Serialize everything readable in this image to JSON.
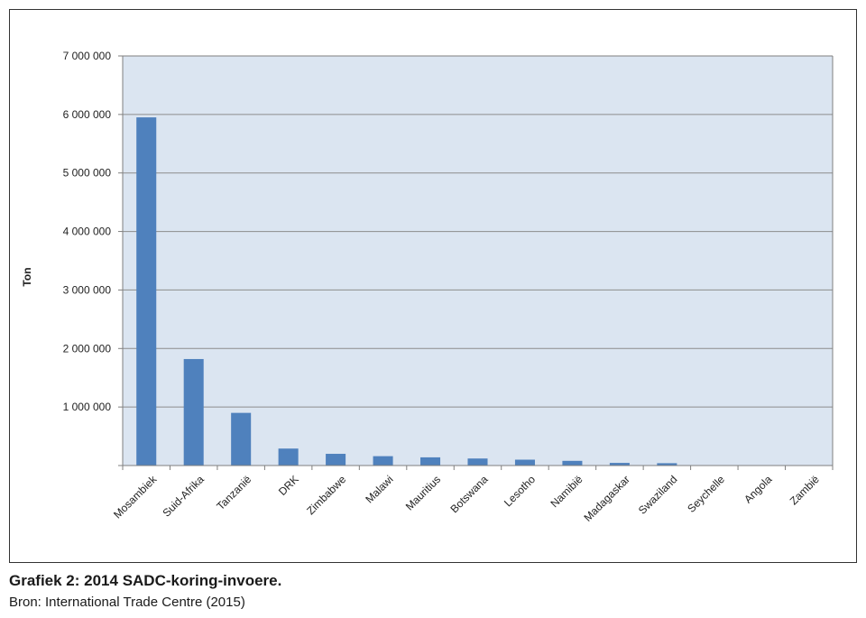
{
  "chart_data": {
    "type": "bar",
    "ylabel": "Ton",
    "xlabel": "",
    "ylim": [
      0,
      7000000
    ],
    "yticks": [
      0,
      1000000,
      2000000,
      3000000,
      4000000,
      5000000,
      6000000,
      7000000
    ],
    "ytick_labels": [
      "",
      "1 000 000",
      "2 000 000",
      "3 000 000",
      "4 000 000",
      "5 000 000",
      "6 000 000",
      "7 000 000"
    ],
    "categories": [
      "Mosambiek",
      "Suid-Afrika",
      "Tanzanië",
      "DRK",
      "Zimbabwe",
      "Malawi",
      "Mauritius",
      "Botswana",
      "Lesotho",
      "Namibië",
      "Madagaskar",
      "Swaziland",
      "Seychelle",
      "Angola",
      "Zambië"
    ],
    "values": [
      5950000,
      1820000,
      900000,
      290000,
      200000,
      160000,
      140000,
      120000,
      100000,
      80000,
      45000,
      40000,
      5000,
      3000,
      2000
    ],
    "grid": true,
    "colors": {
      "bar": "#4f81bd",
      "plot_bg": "#dbe5f1",
      "grid": "#8c8c8c",
      "axis": "#7f7f7f"
    }
  },
  "caption": {
    "title": "Grafiek 2: 2014 SADC-koring-invoere.",
    "source": "Bron: International Trade Centre (2015)"
  }
}
